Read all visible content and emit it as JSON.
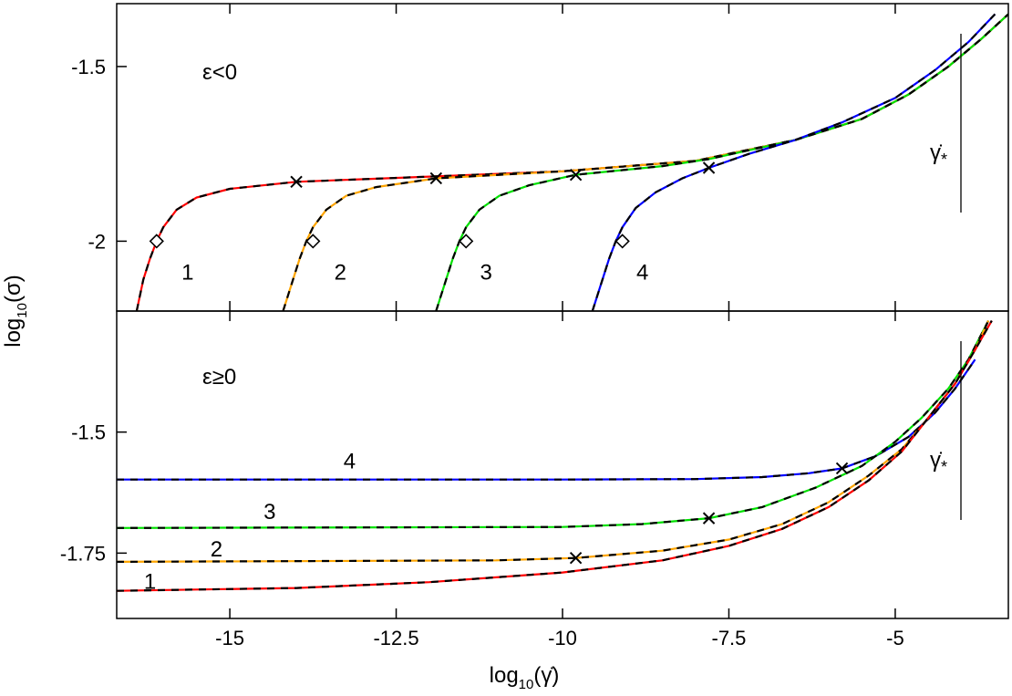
{
  "chart_data": {
    "type": "line",
    "xlabel": "log",
    "xlabel_sub": "10",
    "xlabel_arg": "(γ̇)",
    "ylabel": "log",
    "ylabel_sub": "10",
    "ylabel_arg": "(σ)",
    "xlim": [
      -16.7,
      -3.3
    ],
    "xticks": [
      -15,
      -12.5,
      -10,
      -7.5,
      -5
    ],
    "xtick_labels": [
      "-15",
      "-12.5",
      "-10",
      "-7.5",
      "-5"
    ],
    "legend": "none",
    "grid": false,
    "colors": {
      "1": "#ff0000",
      "2": "#ffa500",
      "3": "#00e000",
      "4": "#0000ff",
      "fit": "#000000"
    },
    "panels": [
      {
        "name": "top",
        "annotation": "ε<0",
        "ylim": [
          -2.2,
          -1.32
        ],
        "yticks": [
          -1.5,
          -2
        ],
        "ytick_labels": [
          "-1.5",
          "-2"
        ],
        "scale_bar_label": "γ̇*",
        "series": [
          {
            "label": "1",
            "color": "#ff0000",
            "x": [
              -16.4,
              -16.3,
              -16.2,
              -16.1,
              -16.0,
              -15.8,
              -15.5,
              -15.0,
              -14.0,
              -12.0,
              -10.0,
              -8.0,
              -6.5,
              -5.5,
              -4.8,
              -4.2,
              -3.7,
              -3.3
            ],
            "y": [
              -2.2,
              -2.11,
              -2.05,
              -2.0,
              -1.96,
              -1.91,
              -1.875,
              -1.85,
              -1.83,
              -1.815,
              -1.8,
              -1.77,
              -1.71,
              -1.65,
              -1.58,
              -1.5,
              -1.42,
              -1.35
            ],
            "diamond": [
              -16.1,
              -2.0
            ],
            "cross": [
              -14.0,
              -1.83
            ]
          },
          {
            "label": "2",
            "color": "#ffa500",
            "x": [
              -14.2,
              -14.05,
              -13.95,
              -13.85,
              -13.75,
              -13.55,
              -13.25,
              -12.8,
              -11.9,
              -10.0,
              -8.0,
              -6.5,
              -5.5,
              -4.8,
              -4.2,
              -3.7,
              -3.3
            ],
            "y": [
              -2.2,
              -2.11,
              -2.05,
              -2.0,
              -1.96,
              -1.91,
              -1.87,
              -1.845,
              -1.82,
              -1.8,
              -1.77,
              -1.71,
              -1.65,
              -1.58,
              -1.5,
              -1.42,
              -1.35
            ],
            "diamond": [
              -13.75,
              -2.0
            ],
            "cross": [
              -11.9,
              -1.82
            ]
          },
          {
            "label": "3",
            "color": "#00e000",
            "x": [
              -11.9,
              -11.75,
              -11.65,
              -11.55,
              -11.45,
              -11.25,
              -10.95,
              -10.5,
              -9.8,
              -8.5,
              -7.8,
              -6.5,
              -5.5,
              -4.8,
              -4.2,
              -3.7,
              -3.3
            ],
            "y": [
              -2.2,
              -2.11,
              -2.05,
              -2.0,
              -1.96,
              -1.91,
              -1.87,
              -1.84,
              -1.81,
              -1.785,
              -1.765,
              -1.71,
              -1.65,
              -1.58,
              -1.5,
              -1.42,
              -1.35
            ],
            "diamond": [
              -11.45,
              -2.0
            ],
            "cross": [
              -9.8,
              -1.81
            ]
          },
          {
            "label": "4",
            "color": "#0000ff",
            "x": [
              -9.55,
              -9.4,
              -9.3,
              -9.2,
              -9.1,
              -8.9,
              -8.6,
              -8.2,
              -7.8,
              -7.2,
              -6.5,
              -5.8,
              -5.0,
              -4.4,
              -3.9,
              -3.5
            ],
            "y": [
              -2.2,
              -2.11,
              -2.05,
              -2.0,
              -1.96,
              -1.905,
              -1.86,
              -1.82,
              -1.79,
              -1.75,
              -1.71,
              -1.66,
              -1.59,
              -1.51,
              -1.43,
              -1.35
            ],
            "diamond": [
              -9.1,
              -2.0
            ],
            "cross": [
              -7.8,
              -1.79
            ]
          }
        ]
      },
      {
        "name": "bottom",
        "annotation": "ε≥0",
        "ylim": [
          -1.885,
          -1.25
        ],
        "yticks": [
          -1.5,
          -1.75
        ],
        "ytick_labels": [
          "-1.5",
          "-1.75"
        ],
        "scale_bar_label": "γ̇*",
        "series": [
          {
            "label": "4",
            "color": "#0000ff",
            "x": [
              -16.7,
              -10.0,
              -8.0,
              -7.0,
              -6.3,
              -5.8,
              -5.3,
              -4.8,
              -4.4,
              -4.1,
              -3.8
            ],
            "y": [
              -1.598,
              -1.598,
              -1.597,
              -1.593,
              -1.585,
              -1.575,
              -1.55,
              -1.51,
              -1.46,
              -1.41,
              -1.35
            ],
            "cross": [
              -5.8,
              -1.575
            ]
          },
          {
            "label": "3",
            "color": "#00e000",
            "x": [
              -16.7,
              -10.0,
              -8.8,
              -7.8,
              -7.0,
              -6.2,
              -5.5,
              -5.0,
              -4.6,
              -4.2,
              -3.9,
              -3.6
            ],
            "y": [
              -1.698,
              -1.696,
              -1.69,
              -1.678,
              -1.655,
              -1.615,
              -1.57,
              -1.52,
              -1.47,
              -1.41,
              -1.35,
              -1.27
            ],
            "cross": [
              -7.8,
              -1.678
            ]
          },
          {
            "label": "2",
            "color": "#ffa500",
            "x": [
              -16.7,
              -11.0,
              -9.8,
              -8.5,
              -7.5,
              -6.7,
              -6.0,
              -5.4,
              -4.9,
              -4.5,
              -4.1,
              -3.8,
              -3.6
            ],
            "y": [
              -1.768,
              -1.765,
              -1.76,
              -1.745,
              -1.722,
              -1.69,
              -1.645,
              -1.59,
              -1.535,
              -1.47,
              -1.4,
              -1.33,
              -1.27
            ],
            "cross": [
              -9.8,
              -1.76
            ]
          },
          {
            "label": "1",
            "color": "#ff0000",
            "x": [
              -16.7,
              -14.0,
              -12.0,
              -10.0,
              -8.5,
              -7.5,
              -6.7,
              -6.0,
              -5.4,
              -4.9,
              -4.5,
              -4.1,
              -3.8,
              -3.55
            ],
            "y": [
              -1.828,
              -1.822,
              -1.81,
              -1.79,
              -1.765,
              -1.735,
              -1.7,
              -1.655,
              -1.6,
              -1.54,
              -1.47,
              -1.4,
              -1.33,
              -1.27
            ]
          }
        ]
      }
    ]
  }
}
